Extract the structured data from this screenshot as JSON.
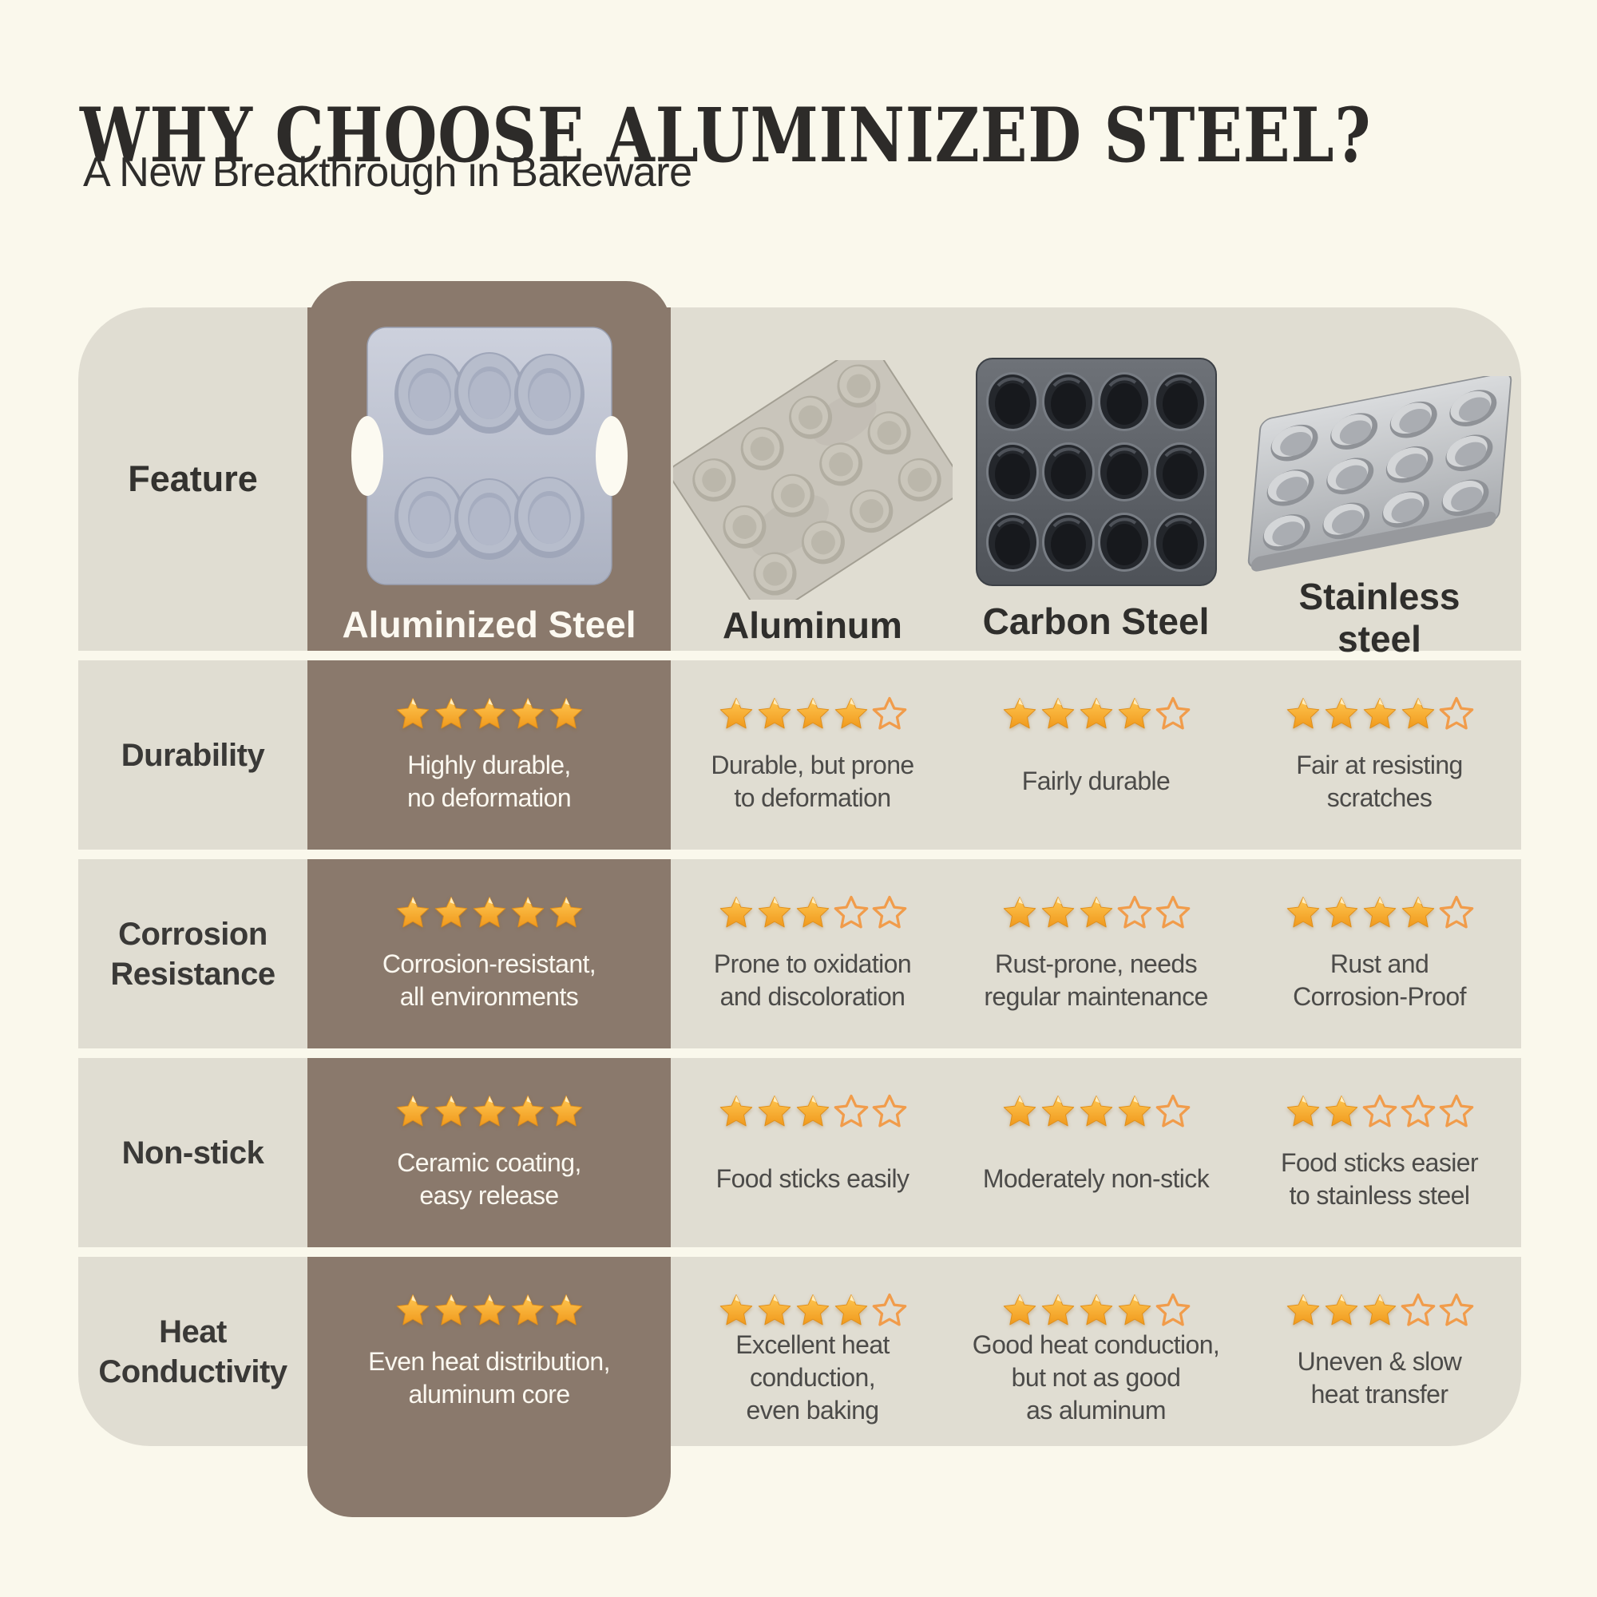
{
  "page": {
    "title": "WHY CHOOSE ALUMINIZED STEEL?",
    "subtitle": "A New Breakthrough in Bakeware"
  },
  "chart_data": {
    "type": "table",
    "title": "WHY CHOOSE ALUMINIZED STEEL?",
    "subtitle": "A New Breakthrough in Bakeware",
    "rating_scale": 5,
    "feature_header": "Feature",
    "columns": [
      {
        "name": "Aluminized Steel",
        "highlighted": true,
        "image": "6-cup aluminized steel muffin pan"
      },
      {
        "name": "Aluminum",
        "highlighted": false,
        "image": "12-cup aluminum muffin pan, angled"
      },
      {
        "name": "Carbon Steel",
        "highlighted": false,
        "image": "12-cup dark carbon steel muffin pan"
      },
      {
        "name": "Stainless\nsteel",
        "highlighted": false,
        "image": "12-cup stainless steel muffin pan, perspective"
      }
    ],
    "rows": [
      {
        "feature": "Durability",
        "cells": [
          {
            "rating": 5,
            "text": "Highly durable,\nno deformation"
          },
          {
            "rating": 4,
            "text": "Durable, but prone\nto deformation"
          },
          {
            "rating": 4,
            "text": "Fairly durable"
          },
          {
            "rating": 4,
            "text": "Fair at resisting\nscratches"
          }
        ]
      },
      {
        "feature": "Corrosion\nResistance",
        "cells": [
          {
            "rating": 5,
            "text": "Corrosion-resistant,\nall environments"
          },
          {
            "rating": 3,
            "text": "Prone to oxidation\nand discoloration"
          },
          {
            "rating": 3,
            "text": "Rust-prone, needs\nregular maintenance"
          },
          {
            "rating": 4,
            "text": "Rust and\nCorrosion-Proof"
          }
        ]
      },
      {
        "feature": "Non-stick",
        "cells": [
          {
            "rating": 5,
            "text": "Ceramic coating,\neasy release"
          },
          {
            "rating": 3,
            "text": "Food sticks easily"
          },
          {
            "rating": 4,
            "text": "Moderately non-stick"
          },
          {
            "rating": 2,
            "text": "Food sticks easier\nto stainless steel"
          }
        ]
      },
      {
        "feature": "Heat\nConductivity",
        "cells": [
          {
            "rating": 5,
            "text": "Even heat distribution,\naluminum core"
          },
          {
            "rating": 4,
            "text": "Excellent heat\nconduction,\neven baking"
          },
          {
            "rating": 4,
            "text": "Good heat conduction,\nbut not as good\nas aluminum"
          },
          {
            "rating": 3,
            "text": "Uneven & slow\nheat transfer"
          }
        ]
      }
    ],
    "colors": {
      "page_background": "#FAF8EC",
      "table_background": "#E0DDD2",
      "highlight_column": "#8A796C",
      "star_filled": "#F6A62B",
      "star_outline": "#F19C4B",
      "title_text": "#2D2B29",
      "body_text": "#4C4B49",
      "highlight_text": "#FBF8F0"
    }
  }
}
